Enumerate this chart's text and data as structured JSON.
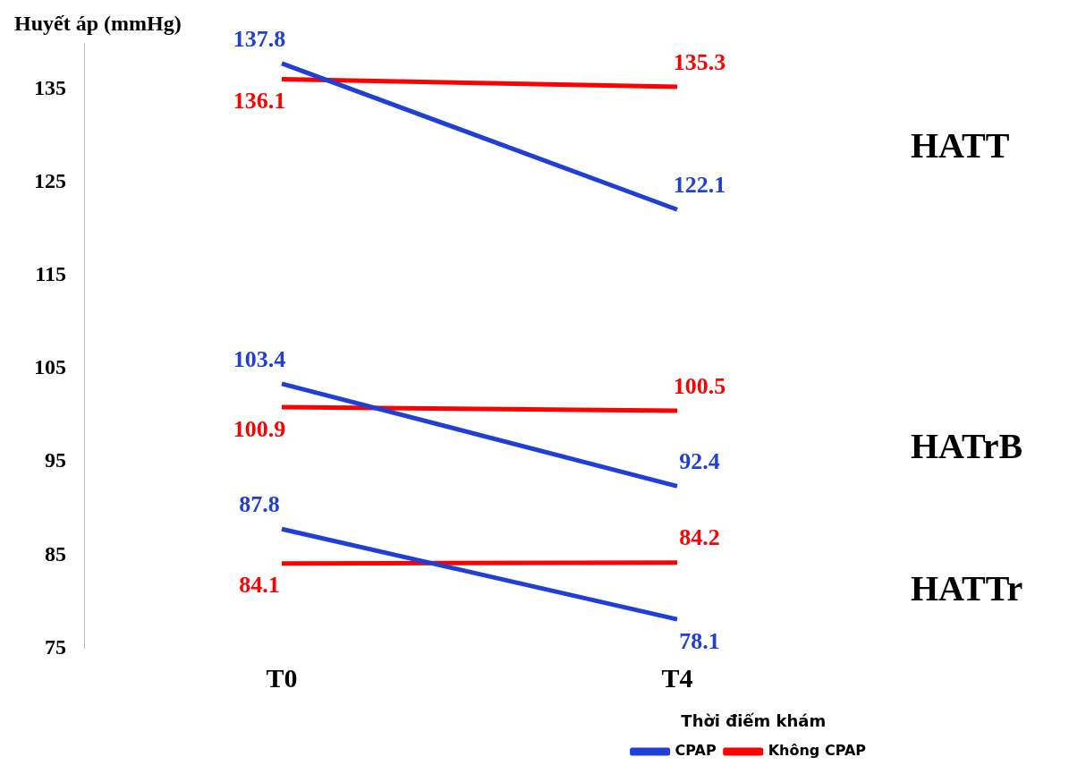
{
  "chart_data": {
    "type": "line",
    "ylabel": "Huyết áp (mmHg)",
    "legend_title": "Thời điểm khám",
    "categories": [
      "T0",
      "T4"
    ],
    "series": [
      {
        "name": "CPAP",
        "color": "#1f3fd6",
        "values": [
          137.8,
          122.1
        ]
      },
      {
        "name": "Không CPAP",
        "color": "#ff0000",
        "values": [
          136.1,
          135.3
        ]
      },
      {
        "color": "#1f3fd6",
        "values": [
          103.4,
          92.4
        ]
      },
      {
        "color": "#ff0000",
        "values": [
          100.9,
          100.5
        ]
      },
      {
        "color": "#1f3fd6",
        "values": [
          87.8,
          78.1
        ]
      },
      {
        "color": "#ff0000",
        "values": [
          84.1,
          84.2
        ]
      }
    ],
    "ylim": [
      75,
      140
    ],
    "yticks": [
      75,
      85,
      95,
      105,
      115,
      125,
      135
    ],
    "grid": false,
    "legend": "bottom right",
    "marker": "none",
    "line_style": "solid",
    "data_labels": true,
    "annotations": [
      "HATT",
      "HATrB",
      "HATTr"
    ]
  }
}
